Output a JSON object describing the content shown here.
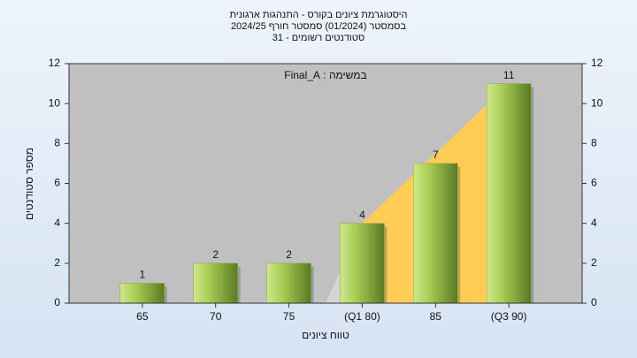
{
  "chart_data": {
    "type": "bar",
    "title": "היסטוגרמת ציונים בקורס - התנהגות ארגונית",
    "subtitle": "בסמסטר  (01/2024)  סמסטר חורף 2024/25",
    "subtitle2": "סטודנטים רשומים - 31",
    "annotation": "במשימה : Final_A",
    "x_label": "טווח ציונים",
    "y_label": "מספר סטודנטים",
    "categories": [
      "65",
      "70",
      "75",
      "(Q1 80)",
      "85",
      "(Q3 90)"
    ],
    "values": [
      1,
      2,
      2,
      4,
      7,
      11
    ],
    "color": "#8aaa3c",
    "ylim": [
      0,
      12
    ],
    "yticks": [
      0,
      2,
      4,
      6,
      8,
      10,
      12
    ],
    "y2lim": [
      0,
      12
    ],
    "y2ticks": [
      0,
      2,
      4,
      6,
      8,
      10,
      12
    ],
    "grid": false
  }
}
